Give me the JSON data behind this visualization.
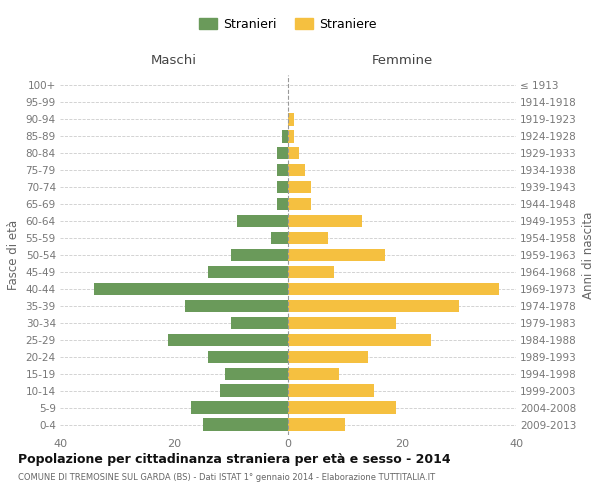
{
  "age_groups": [
    "0-4",
    "5-9",
    "10-14",
    "15-19",
    "20-24",
    "25-29",
    "30-34",
    "35-39",
    "40-44",
    "45-49",
    "50-54",
    "55-59",
    "60-64",
    "65-69",
    "70-74",
    "75-79",
    "80-84",
    "85-89",
    "90-94",
    "95-99",
    "100+"
  ],
  "birth_years": [
    "2009-2013",
    "2004-2008",
    "1999-2003",
    "1994-1998",
    "1989-1993",
    "1984-1988",
    "1979-1983",
    "1974-1978",
    "1969-1973",
    "1964-1968",
    "1959-1963",
    "1954-1958",
    "1949-1953",
    "1944-1948",
    "1939-1943",
    "1934-1938",
    "1929-1933",
    "1924-1928",
    "1919-1923",
    "1914-1918",
    "≤ 1913"
  ],
  "maschi": [
    15,
    17,
    12,
    11,
    14,
    21,
    10,
    18,
    34,
    14,
    10,
    3,
    9,
    2,
    2,
    2,
    2,
    1,
    0,
    0,
    0
  ],
  "femmine": [
    10,
    19,
    15,
    9,
    14,
    25,
    19,
    30,
    37,
    8,
    17,
    7,
    13,
    4,
    4,
    3,
    2,
    1,
    1,
    0,
    0
  ],
  "color_maschi": "#6a9a5a",
  "color_femmine": "#f5c040",
  "xlim": 40,
  "title": "Popolazione per cittadinanza straniera per età e sesso - 2014",
  "subtitle": "COMUNE DI TREMOSINE SUL GARDA (BS) - Dati ISTAT 1° gennaio 2014 - Elaborazione TUTTITALIA.IT",
  "xlabel_left": "Maschi",
  "xlabel_right": "Femmine",
  "ylabel_left": "Fasce di età",
  "ylabel_right": "Anni di nascita",
  "legend_maschi": "Stranieri",
  "legend_femmine": "Straniere",
  "bg_color": "#ffffff",
  "grid_color": "#cccccc"
}
